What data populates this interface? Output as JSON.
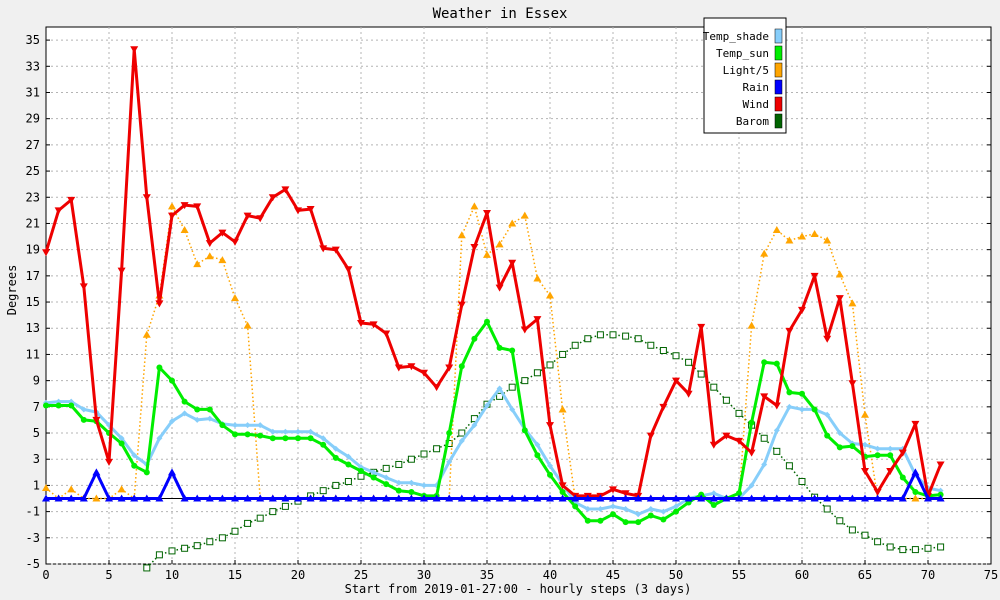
{
  "chart_data": {
    "type": "line",
    "title": "Weather in Essex",
    "xlabel": "Start from 2019-01-27:00 - hourly steps (3 days)",
    "ylabel": "Degrees",
    "xlim": [
      0,
      75
    ],
    "ylim": [
      -5,
      36
    ],
    "x_ticks": [
      0,
      5,
      10,
      15,
      20,
      25,
      30,
      35,
      40,
      45,
      50,
      55,
      60,
      65,
      70,
      75
    ],
    "y_ticks": [
      -5,
      -3,
      -1,
      1,
      3,
      5,
      7,
      9,
      11,
      13,
      15,
      17,
      19,
      21,
      23,
      25,
      27,
      29,
      31,
      33,
      35
    ],
    "grid": true,
    "legend_position": "top-right",
    "series": [
      {
        "name": "Temp_shade",
        "color": "#87cefa",
        "marker": "diamond",
        "style": "solid",
        "values": [
          7.3,
          7.4,
          7.4,
          6.8,
          6.6,
          5.6,
          4.6,
          3.3,
          2.6,
          4.6,
          5.9,
          6.5,
          6.0,
          6.1,
          5.7,
          5.6,
          5.6,
          5.6,
          5.1,
          5.1,
          5.1,
          5.1,
          4.6,
          3.8,
          3.2,
          2.4,
          2.0,
          1.6,
          1.2,
          1.2,
          1.0,
          1.0,
          2.8,
          4.4,
          5.6,
          7.1,
          8.4,
          6.8,
          5.3,
          4.1,
          2.5,
          1.1,
          -0.3,
          -0.8,
          -0.8,
          -0.6,
          -0.8,
          -1.2,
          -0.8,
          -1.0,
          -0.6,
          0.0,
          0.2,
          0.4,
          0.0,
          0.0,
          1.0,
          2.6,
          5.2,
          7.0,
          6.8,
          6.8,
          6.4,
          5.0,
          4.2,
          4.1,
          3.8,
          3.8,
          3.8,
          1.8,
          0.8,
          0.6
        ]
      },
      {
        "name": "Temp_sun",
        "color": "#00ee00",
        "marker": "circle",
        "style": "solid",
        "values": [
          7.1,
          7.1,
          7.1,
          6.0,
          5.9,
          5.0,
          4.2,
          2.5,
          2.0,
          10.0,
          9.0,
          7.4,
          6.8,
          6.8,
          5.6,
          4.9,
          4.9,
          4.8,
          4.6,
          4.6,
          4.6,
          4.6,
          4.1,
          3.1,
          2.6,
          2.1,
          1.6,
          1.1,
          0.6,
          0.5,
          0.2,
          0.2,
          5.0,
          10.1,
          12.2,
          13.5,
          11.5,
          11.3,
          5.2,
          3.3,
          1.8,
          0.5,
          -0.6,
          -1.7,
          -1.7,
          -1.2,
          -1.8,
          -1.8,
          -1.3,
          -1.6,
          -1.0,
          -0.3,
          0.3,
          -0.5,
          0.0,
          0.4,
          5.8,
          10.4,
          10.3,
          8.1,
          8.0,
          6.8,
          4.8,
          3.9,
          4.0,
          3.2,
          3.3,
          3.3,
          1.6,
          0.5,
          0.2,
          0.3
        ]
      },
      {
        "name": "Light/5",
        "color": "#ffa500",
        "marker": "triangle-up",
        "style": "dotted",
        "values": [
          0.8,
          0.0,
          0.7,
          0.0,
          0.0,
          0.0,
          0.7,
          0.0,
          12.5,
          15.5,
          22.3,
          20.5,
          17.9,
          18.5,
          18.2,
          15.3,
          13.2,
          0.0,
          0.0,
          0.0,
          0.0,
          0.0,
          0.0,
          0.0,
          0.0,
          0.0,
          0.0,
          0.0,
          0.0,
          0.0,
          0.0,
          0.0,
          0.0,
          20.1,
          22.3,
          18.6,
          19.4,
          21.0,
          21.6,
          16.8,
          15.5,
          6.8,
          0.0,
          0.0,
          0.0,
          0.0,
          0.0,
          0.0,
          0.0,
          0.0,
          0.0,
          0.0,
          0.0,
          0.0,
          0.0,
          0.0,
          13.2,
          18.7,
          20.5,
          19.7,
          20.0,
          20.2,
          19.7,
          17.1,
          14.9,
          6.4,
          0.0,
          0.0,
          0.0,
          0.0,
          0.0,
          0.0
        ]
      },
      {
        "name": "Rain",
        "color": "#0000ff",
        "marker": "triangle-up",
        "style": "solid",
        "values": [
          0,
          0,
          0,
          0,
          2,
          0,
          0,
          0,
          0,
          0,
          2,
          0,
          0,
          0,
          0,
          0,
          0,
          0,
          0,
          0,
          0,
          0,
          0,
          0,
          0,
          0,
          0,
          0,
          0,
          0,
          0,
          0,
          0,
          0,
          0,
          0,
          0,
          0,
          0,
          0,
          0,
          0,
          0,
          0,
          0,
          0,
          0,
          0,
          0,
          0,
          0,
          0,
          0,
          0,
          0,
          0,
          0,
          0,
          0,
          0,
          0,
          0,
          0,
          0,
          0,
          0,
          0,
          0,
          0,
          2,
          0,
          0
        ]
      },
      {
        "name": "Wind",
        "color": "#ee0000",
        "marker": "triangle-down",
        "style": "solid",
        "values": [
          18.8,
          22.0,
          22.8,
          16.2,
          6.0,
          2.8,
          17.4,
          34.3,
          23.0,
          14.9,
          21.6,
          22.4,
          22.3,
          19.5,
          20.3,
          19.6,
          21.6,
          21.4,
          23.0,
          23.6,
          22.0,
          22.1,
          19.1,
          19.0,
          17.5,
          13.4,
          13.3,
          12.6,
          10.0,
          10.1,
          9.6,
          8.5,
          10.0,
          14.8,
          19.2,
          21.8,
          16.1,
          18.0,
          12.9,
          13.7,
          5.6,
          1.0,
          0.2,
          0.2,
          0.2,
          0.7,
          0.4,
          0.2,
          4.8,
          7.0,
          9.0,
          8.0,
          13.1,
          4.1,
          4.8,
          4.4,
          3.5,
          7.8,
          7.1,
          12.8,
          14.4,
          17.0,
          12.2,
          15.3,
          8.8,
          2.1,
          0.5,
          2.1,
          3.5,
          5.7,
          0.2,
          2.6
        ]
      },
      {
        "name": "Barom",
        "color": "#006400",
        "marker": "square",
        "style": "dotted",
        "values": [
          null,
          null,
          null,
          null,
          null,
          null,
          null,
          null,
          -5.3,
          -4.3,
          -4.0,
          -3.8,
          -3.6,
          -3.3,
          -3.0,
          -2.5,
          -1.9,
          -1.5,
          -1.0,
          -0.6,
          -0.2,
          0.2,
          0.6,
          1.0,
          1.3,
          1.7,
          2.0,
          2.3,
          2.6,
          3.0,
          3.4,
          3.8,
          4.2,
          5.0,
          6.1,
          7.2,
          7.8,
          8.5,
          9.0,
          9.6,
          10.2,
          11.0,
          11.7,
          12.2,
          12.5,
          12.5,
          12.4,
          12.2,
          11.7,
          11.3,
          10.9,
          10.4,
          9.5,
          8.5,
          7.5,
          6.5,
          5.6,
          4.6,
          3.6,
          2.5,
          1.3,
          0.1,
          -0.8,
          -1.7,
          -2.4,
          -2.8,
          -3.3,
          -3.7,
          -3.9,
          -3.9,
          -3.8,
          -3.7
        ]
      }
    ]
  }
}
